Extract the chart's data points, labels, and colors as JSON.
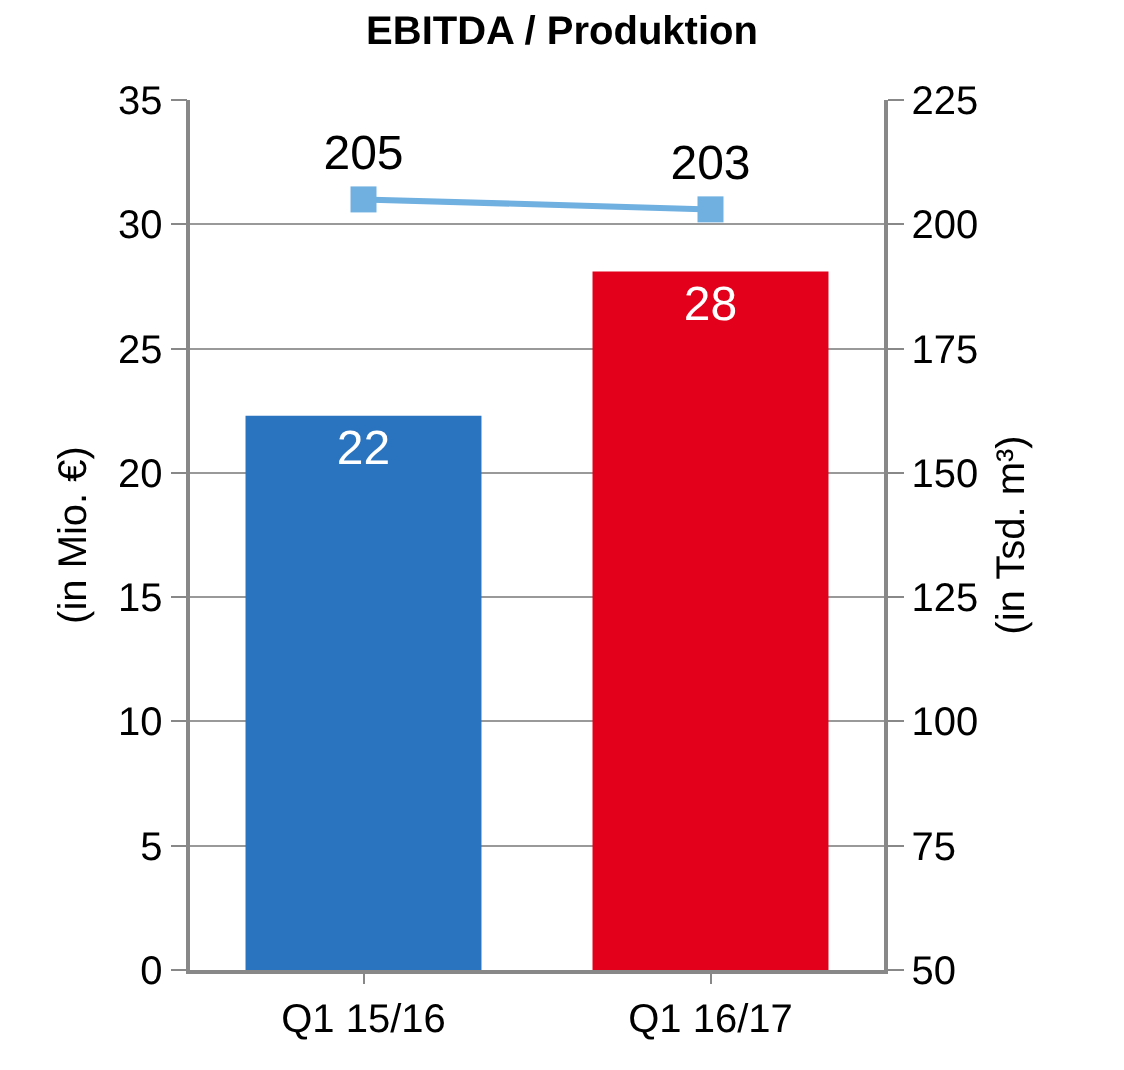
{
  "chart_data": {
    "type": "bar",
    "title": "EBITDA / Produktion",
    "ylabel": "(in Mio. €)",
    "y2label": "(in Tsd. m³)",
    "categories": [
      "Q1 15/16",
      "Q1 16/17"
    ],
    "series": [
      {
        "colors": [
          "#2a73be",
          "#e2001a"
        ],
        "values": [
          22.3,
          28.1
        ],
        "value_labels": [
          "22",
          "28"
        ]
      },
      {
        "type": "line",
        "axis": "y2",
        "color": "#6fb0e0",
        "marker": "square",
        "values": [
          205,
          203
        ],
        "value_labels": [
          "205",
          "203"
        ]
      }
    ],
    "ylim": [
      0,
      35
    ],
    "yticks": [
      0,
      5,
      10,
      15,
      20,
      25,
      30,
      35
    ],
    "y2lim": [
      50,
      225
    ],
    "y2ticks": [
      50,
      75,
      100,
      125,
      150,
      175,
      200,
      225
    ],
    "grid": "y"
  }
}
